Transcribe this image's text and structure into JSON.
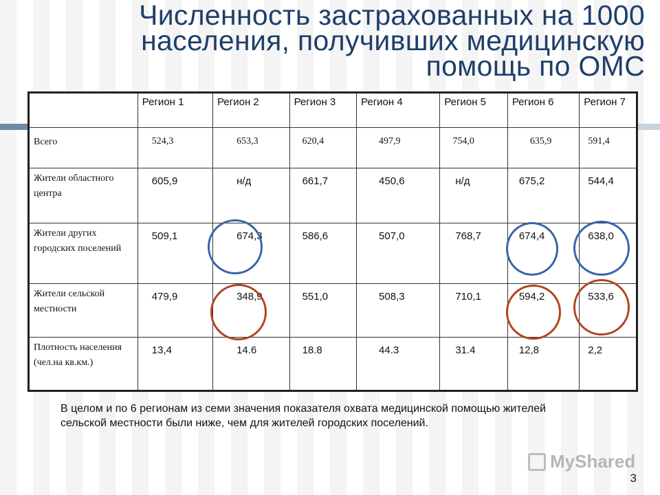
{
  "title": {
    "line1": "Численность застрахованных на 1000",
    "line2": "населения, получивших медицинскую",
    "line3": "помощь по ОМС"
  },
  "table": {
    "headers": [
      "",
      "Регион 1",
      "Регион 2",
      "Регион 3",
      "Регион 4",
      "Регион 5",
      "Регион 6",
      "Регион 7"
    ],
    "rows": [
      {
        "label": "Всего",
        "cells": [
          "524,3",
          "653,3",
          "620,4",
          "497,9",
          "754,0",
          "635,9",
          "591,4"
        ]
      },
      {
        "label": "Жители областного центра",
        "cells": [
          "605,9",
          "н/д",
          "661,7",
          "450,6",
          "н/д",
          "675,2",
          "544,4"
        ]
      },
      {
        "label": "Жители других городских поселений",
        "cells": [
          "509,1",
          "674,3",
          "586,6",
          "507,0",
          "768,7",
          "674,4",
          "638,0"
        ]
      },
      {
        "label": "Жители сельской местности",
        "cells": [
          "479,9",
          "348,9",
          "551,0",
          "508,3",
          "710,1",
          "594,2",
          "533,6"
        ]
      },
      {
        "label": "Плотность населения (чел.на кв.км.)",
        "cells": [
          "13,4",
          "14.6",
          "18.8",
          "44.3",
          "31.4",
          "12,8",
          "2,2"
        ]
      }
    ]
  },
  "note": "В целом и  по  6  регионам из семи значения  показателя  охвата медицинской  помощью жителей сельской местности были  ниже, чем для жителей  городских  поселений.",
  "watermark": "MyShared",
  "page_number": "3",
  "colors": {
    "title": "#1f3f6a",
    "highlight_urban": "#3a64a8",
    "highlight_rural": "#b0441f"
  }
}
